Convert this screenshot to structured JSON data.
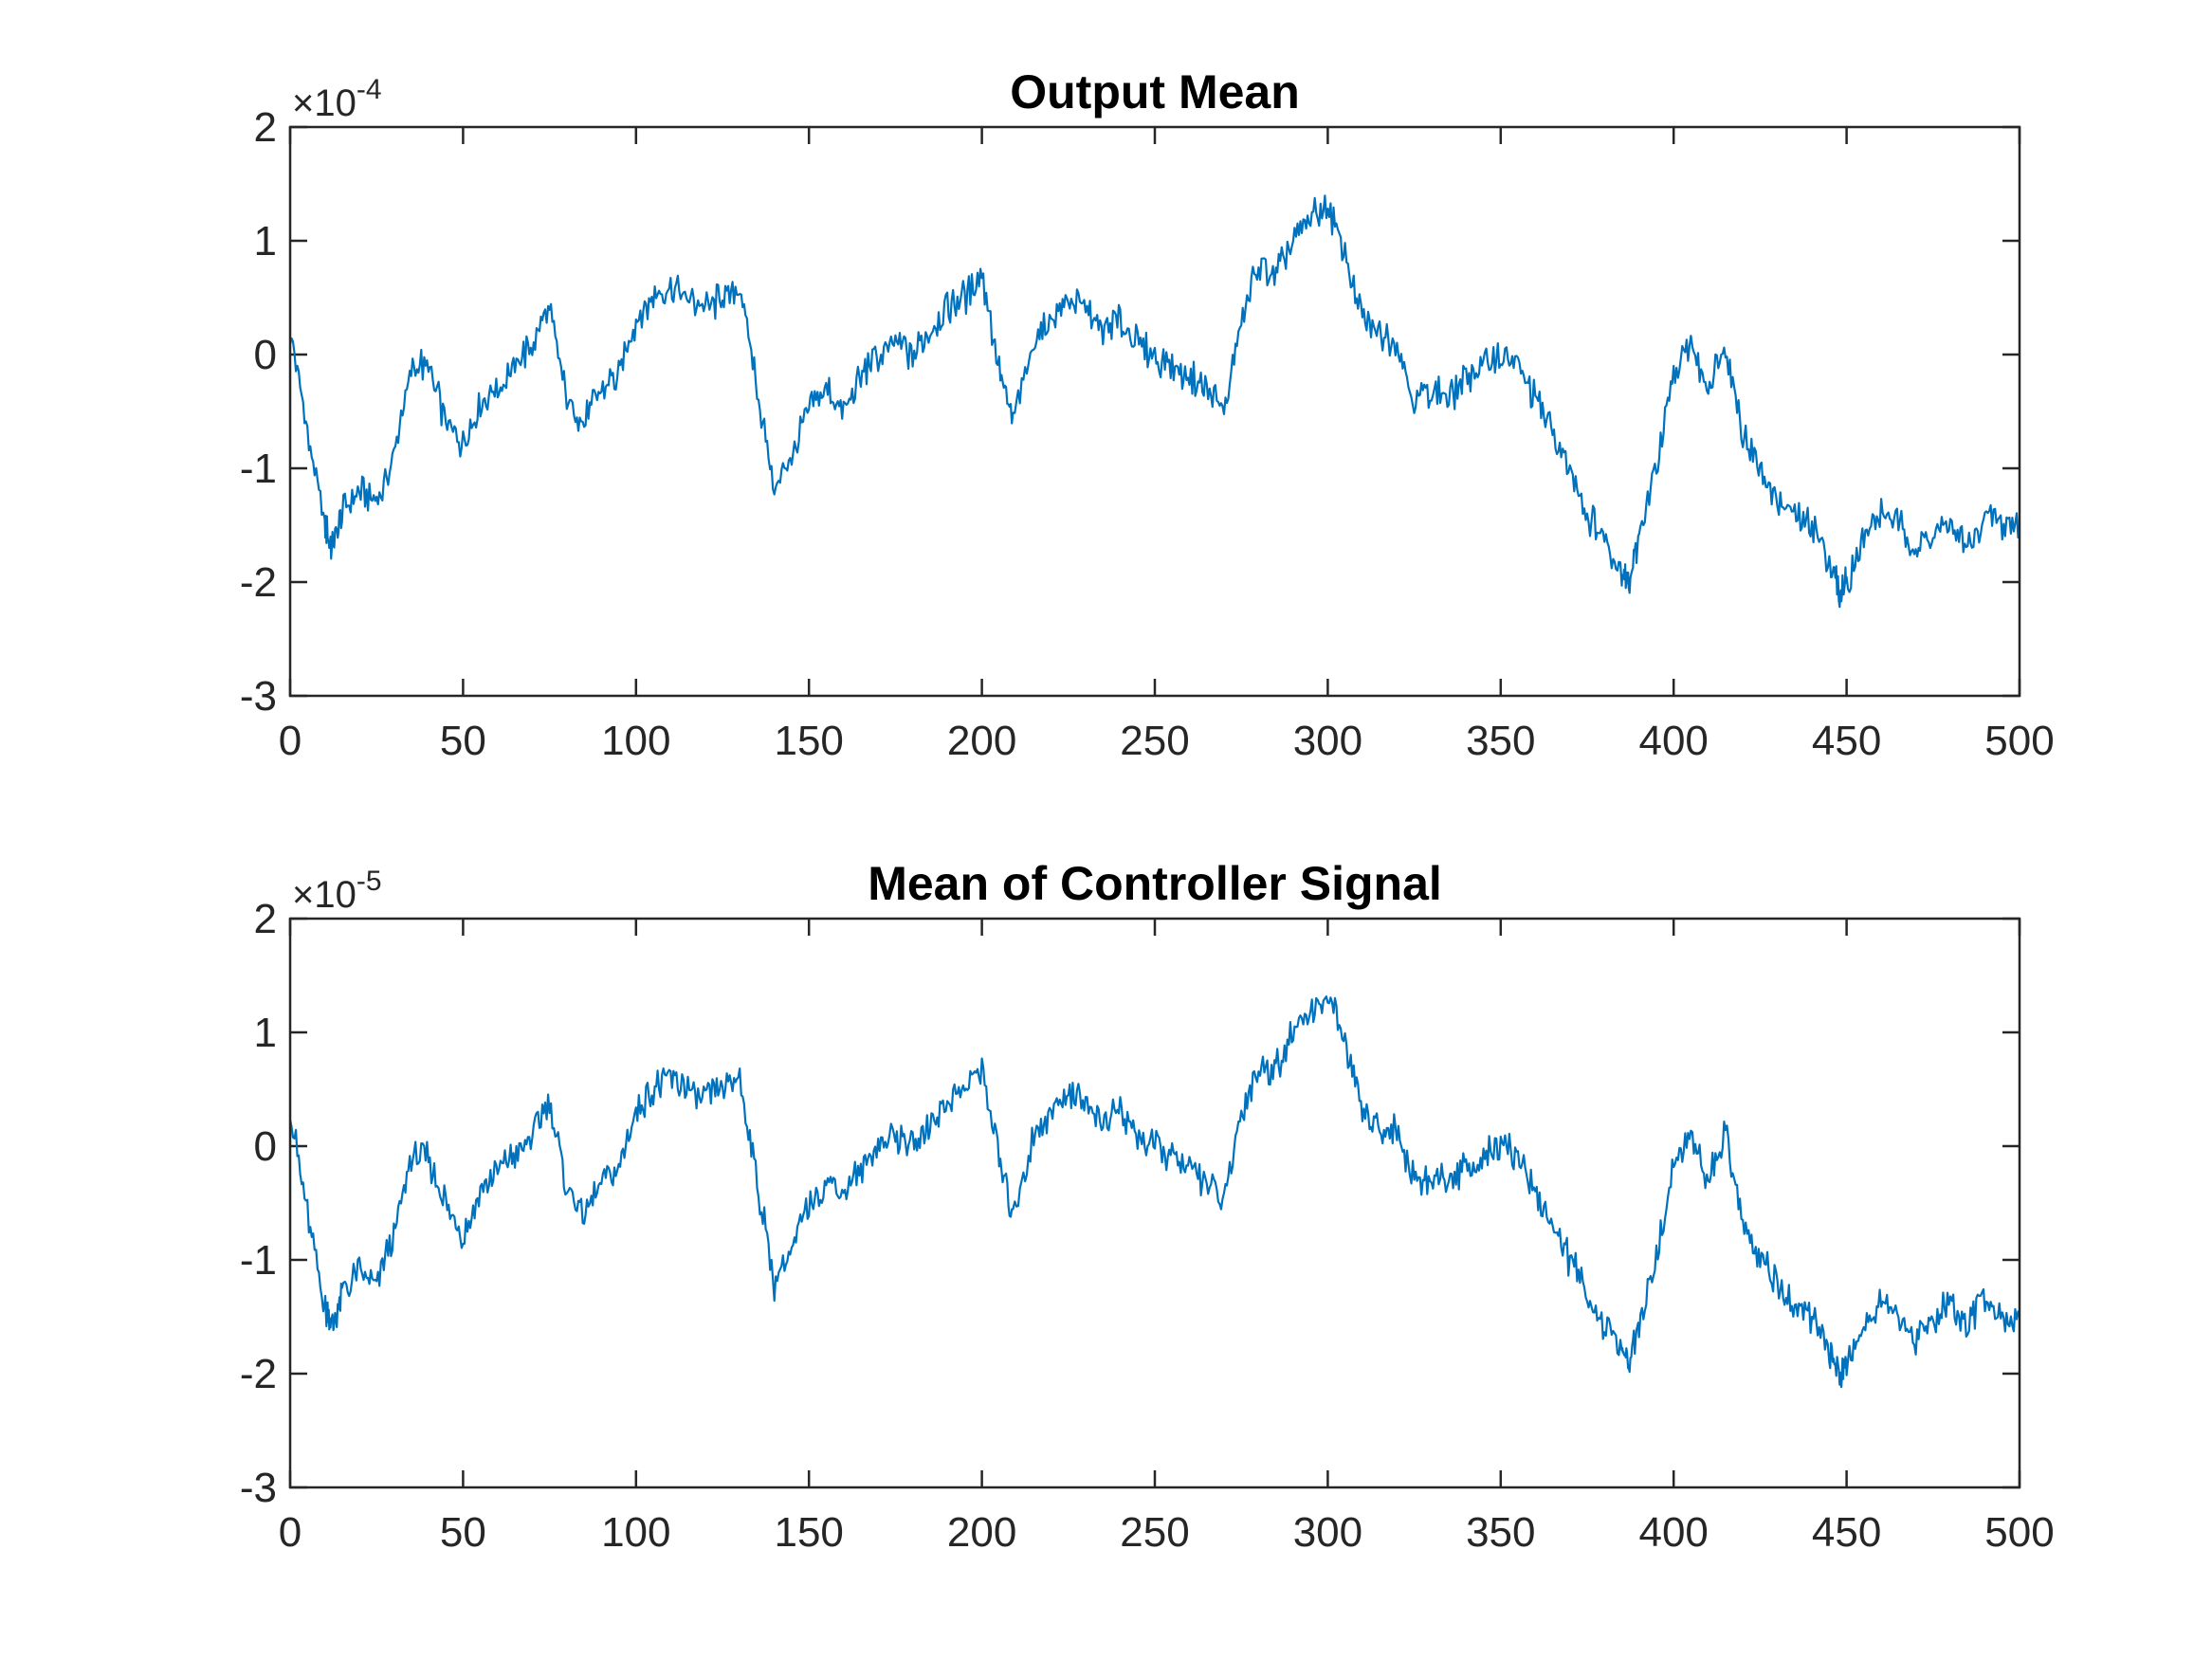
{
  "theme": {
    "line_color": "#0072BD",
    "axis_color": "#262626",
    "background": "#ffffff"
  },
  "chart_data": [
    {
      "type": "line",
      "title": "Output Mean",
      "xlabel": "",
      "ylabel": "",
      "xlim": [
        0,
        500
      ],
      "ylim": [
        -3,
        2
      ],
      "xticks": [
        "0",
        "50",
        "100",
        "150",
        "200",
        "250",
        "300",
        "350",
        "400",
        "450",
        "500"
      ],
      "yticks": [
        "2",
        "1",
        "0",
        "-1",
        "-2",
        "-3"
      ],
      "y_exponent": {
        "base": "×10",
        "power": "-4"
      },
      "grid": false,
      "legend": "none",
      "series": [
        {
          "color": "#0072BD",
          "x": [
            0,
            5,
            10,
            12,
            15,
            20,
            25,
            30,
            35,
            40,
            45,
            50,
            55,
            60,
            65,
            70,
            75,
            80,
            85,
            90,
            95,
            100,
            105,
            110,
            115,
            120,
            125,
            130,
            135,
            140,
            145,
            150,
            155,
            160,
            165,
            170,
            175,
            180,
            185,
            190,
            195,
            200,
            205,
            209,
            215,
            220,
            225,
            230,
            235,
            240,
            245,
            250,
            255,
            260,
            265,
            270,
            275,
            280,
            285,
            290,
            295,
            300,
            305,
            310,
            315,
            320,
            325,
            330,
            335,
            340,
            345,
            350,
            355,
            360,
            365,
            370,
            375,
            380,
            385,
            387,
            390,
            395,
            400,
            405,
            410,
            415,
            420,
            425,
            430,
            435,
            440,
            445,
            448,
            450,
            455,
            460,
            465,
            470,
            475,
            480,
            485,
            490,
            495,
            500
          ],
          "y": [
            0.2,
            -0.7,
            -1.5,
            -1.7,
            -1.4,
            -1.2,
            -1.3,
            -0.9,
            -0.1,
            -0.1,
            -0.6,
            -0.8,
            -0.4,
            -0.3,
            -0.1,
            0.1,
            0.4,
            -0.4,
            -0.6,
            -0.3,
            -0.2,
            0.3,
            0.5,
            0.6,
            0.5,
            0.4,
            0.5,
            0.6,
            -0.3,
            -1.2,
            -0.9,
            -0.5,
            -0.3,
            -0.5,
            -0.2,
            0.0,
            0.1,
            0.0,
            0.2,
            0.4,
            0.5,
            0.7,
            -0.1,
            -0.6,
            0.1,
            0.3,
            0.5,
            0.4,
            0.2,
            0.3,
            0.1,
            0.0,
            -0.1,
            -0.2,
            -0.3,
            -0.5,
            0.3,
            0.8,
            0.7,
            1.0,
            1.2,
            1.3,
            0.9,
            0.3,
            0.2,
            0.1,
            -0.4,
            -0.3,
            -0.4,
            -0.2,
            -0.1,
            0.0,
            -0.1,
            -0.4,
            -0.7,
            -1.0,
            -1.4,
            -1.6,
            -1.9,
            -2.0,
            -1.6,
            -1.0,
            -0.2,
            0.1,
            -0.3,
            0.1,
            -0.7,
            -1.0,
            -1.3,
            -1.4,
            -1.5,
            -1.8,
            -2.1,
            -2.0,
            -1.6,
            -1.4,
            -1.5,
            -1.7,
            -1.6,
            -1.5,
            -1.7,
            -1.4,
            -1.5,
            -1.5
          ]
        }
      ]
    },
    {
      "type": "line",
      "title": "Mean of Controller Signal",
      "xlabel": "",
      "ylabel": "",
      "xlim": [
        0,
        500
      ],
      "ylim": [
        -3,
        2
      ],
      "xticks": [
        "0",
        "50",
        "100",
        "150",
        "200",
        "250",
        "300",
        "350",
        "400",
        "450",
        "500"
      ],
      "yticks": [
        "2",
        "1",
        "0",
        "-1",
        "-2",
        "-3"
      ],
      "y_exponent": {
        "base": "×10",
        "power": "-5"
      },
      "grid": false,
      "legend": "none",
      "series": [
        {
          "color": "#0072BD",
          "x": [
            0,
            5,
            10,
            12,
            15,
            20,
            25,
            30,
            35,
            40,
            45,
            50,
            55,
            60,
            65,
            70,
            75,
            80,
            85,
            90,
            95,
            100,
            105,
            110,
            115,
            120,
            125,
            130,
            135,
            140,
            145,
            150,
            155,
            160,
            165,
            170,
            175,
            180,
            185,
            190,
            195,
            200,
            205,
            209,
            215,
            220,
            225,
            230,
            235,
            240,
            245,
            250,
            255,
            260,
            265,
            270,
            275,
            280,
            285,
            290,
            295,
            300,
            305,
            310,
            315,
            320,
            325,
            330,
            335,
            340,
            345,
            350,
            355,
            360,
            365,
            370,
            375,
            380,
            385,
            387,
            390,
            395,
            400,
            405,
            410,
            415,
            420,
            425,
            430,
            435,
            440,
            445,
            448,
            450,
            455,
            460,
            465,
            470,
            475,
            480,
            485,
            490,
            495,
            500
          ],
          "y": [
            0.3,
            -0.6,
            -1.4,
            -1.6,
            -1.3,
            -1.1,
            -1.2,
            -0.8,
            -0.1,
            -0.1,
            -0.5,
            -0.8,
            -0.4,
            -0.2,
            -0.1,
            0.1,
            0.4,
            -0.4,
            -0.6,
            -0.3,
            -0.2,
            0.3,
            0.5,
            0.6,
            0.5,
            0.4,
            0.5,
            0.6,
            -0.3,
            -1.2,
            -0.9,
            -0.5,
            -0.3,
            -0.4,
            -0.2,
            0.0,
            0.1,
            0.0,
            0.2,
            0.4,
            0.5,
            0.7,
            -0.1,
            -0.6,
            0.1,
            0.3,
            0.5,
            0.4,
            0.2,
            0.3,
            0.1,
            0.0,
            -0.1,
            -0.2,
            -0.3,
            -0.5,
            0.3,
            0.7,
            0.7,
            1.0,
            1.2,
            1.3,
            0.9,
            0.3,
            0.2,
            0.1,
            -0.3,
            -0.3,
            -0.3,
            -0.2,
            -0.1,
            0.0,
            -0.1,
            -0.4,
            -0.7,
            -1.0,
            -1.3,
            -1.6,
            -1.8,
            -1.9,
            -1.6,
            -1.0,
            -0.2,
            0.1,
            -0.3,
            0.1,
            -0.7,
            -1.0,
            -1.2,
            -1.4,
            -1.5,
            -1.8,
            -2.0,
            -1.9,
            -1.6,
            -1.3,
            -1.5,
            -1.7,
            -1.5,
            -1.4,
            -1.6,
            -1.3,
            -1.5,
            -1.5
          ]
        }
      ]
    }
  ]
}
